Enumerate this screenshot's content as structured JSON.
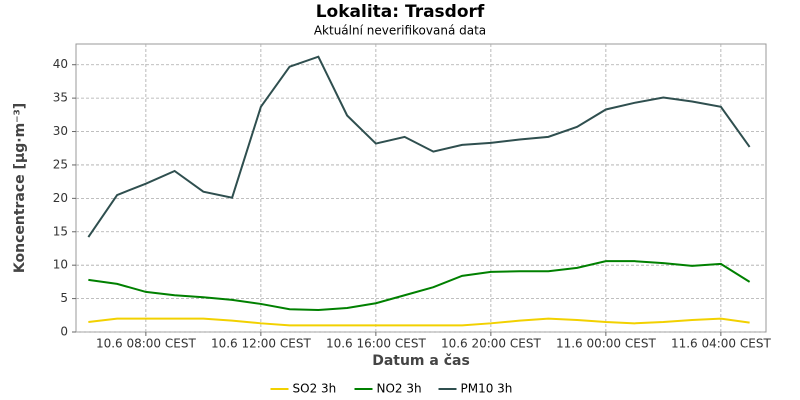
{
  "chart_data": {
    "type": "line",
    "title": "Lokalita: Trasdorf",
    "subtitle": "Aktuální neverifikovaná data",
    "x_label": "Datum a čas",
    "y_label": "Koncentrace [µg·m⁻³]",
    "x": [
      6,
      7,
      8,
      9,
      10,
      11,
      12,
      13,
      14,
      15,
      16,
      17,
      18,
      19,
      20,
      21,
      22,
      23,
      24,
      25,
      26,
      27,
      28,
      29
    ],
    "xlim": [
      5.57,
      29.57
    ],
    "xticks": [
      {
        "value": 8,
        "label": "10.6 08:00 CEST"
      },
      {
        "value": 12,
        "label": "10.6 12:00 CEST"
      },
      {
        "value": 16,
        "label": "10.6 16:00 CEST"
      },
      {
        "value": 20,
        "label": "10.6 20:00 CEST"
      },
      {
        "value": 24,
        "label": "11.6 00:00 CEST"
      },
      {
        "value": 28,
        "label": "11.6 04:00 CEST"
      }
    ],
    "ylim": [
      0,
      43.1
    ],
    "yticks": [
      0,
      5,
      10,
      15,
      20,
      25,
      30,
      35,
      40
    ],
    "grid": true,
    "legend": "bottom",
    "series": [
      {
        "name": "SO2 3h",
        "color": "#f2d100",
        "values": [
          1.5,
          2,
          2,
          2,
          2,
          1.7,
          1.3,
          1,
          1,
          1,
          1,
          1,
          1,
          1,
          1.3,
          1.7,
          2,
          1.8,
          1.5,
          1.3,
          1.5,
          1.8,
          2,
          1.4
        ]
      },
      {
        "name": "NO2 3h",
        "color": "#008000",
        "values": [
          7.8,
          7.2,
          6.0,
          5.5,
          5.2,
          4.8,
          4.2,
          3.4,
          3.3,
          3.6,
          4.3,
          5.5,
          6.7,
          8.4,
          9.0,
          9.1,
          9.1,
          9.6,
          10.6,
          10.6,
          10.3,
          9.9,
          10.2,
          7.5
        ]
      },
      {
        "name": "PM10 3h",
        "color": "#2f4f4f",
        "values": [
          14.2,
          20.5,
          22.2,
          24.1,
          21.0,
          20.1,
          33.7,
          39.7,
          41.2,
          32.4,
          28.2,
          29.2,
          27.0,
          28.0,
          28.3,
          28.8,
          29.2,
          30.7,
          33.3,
          34.3,
          35.1,
          34.5,
          33.7,
          27.7
        ]
      }
    ]
  }
}
